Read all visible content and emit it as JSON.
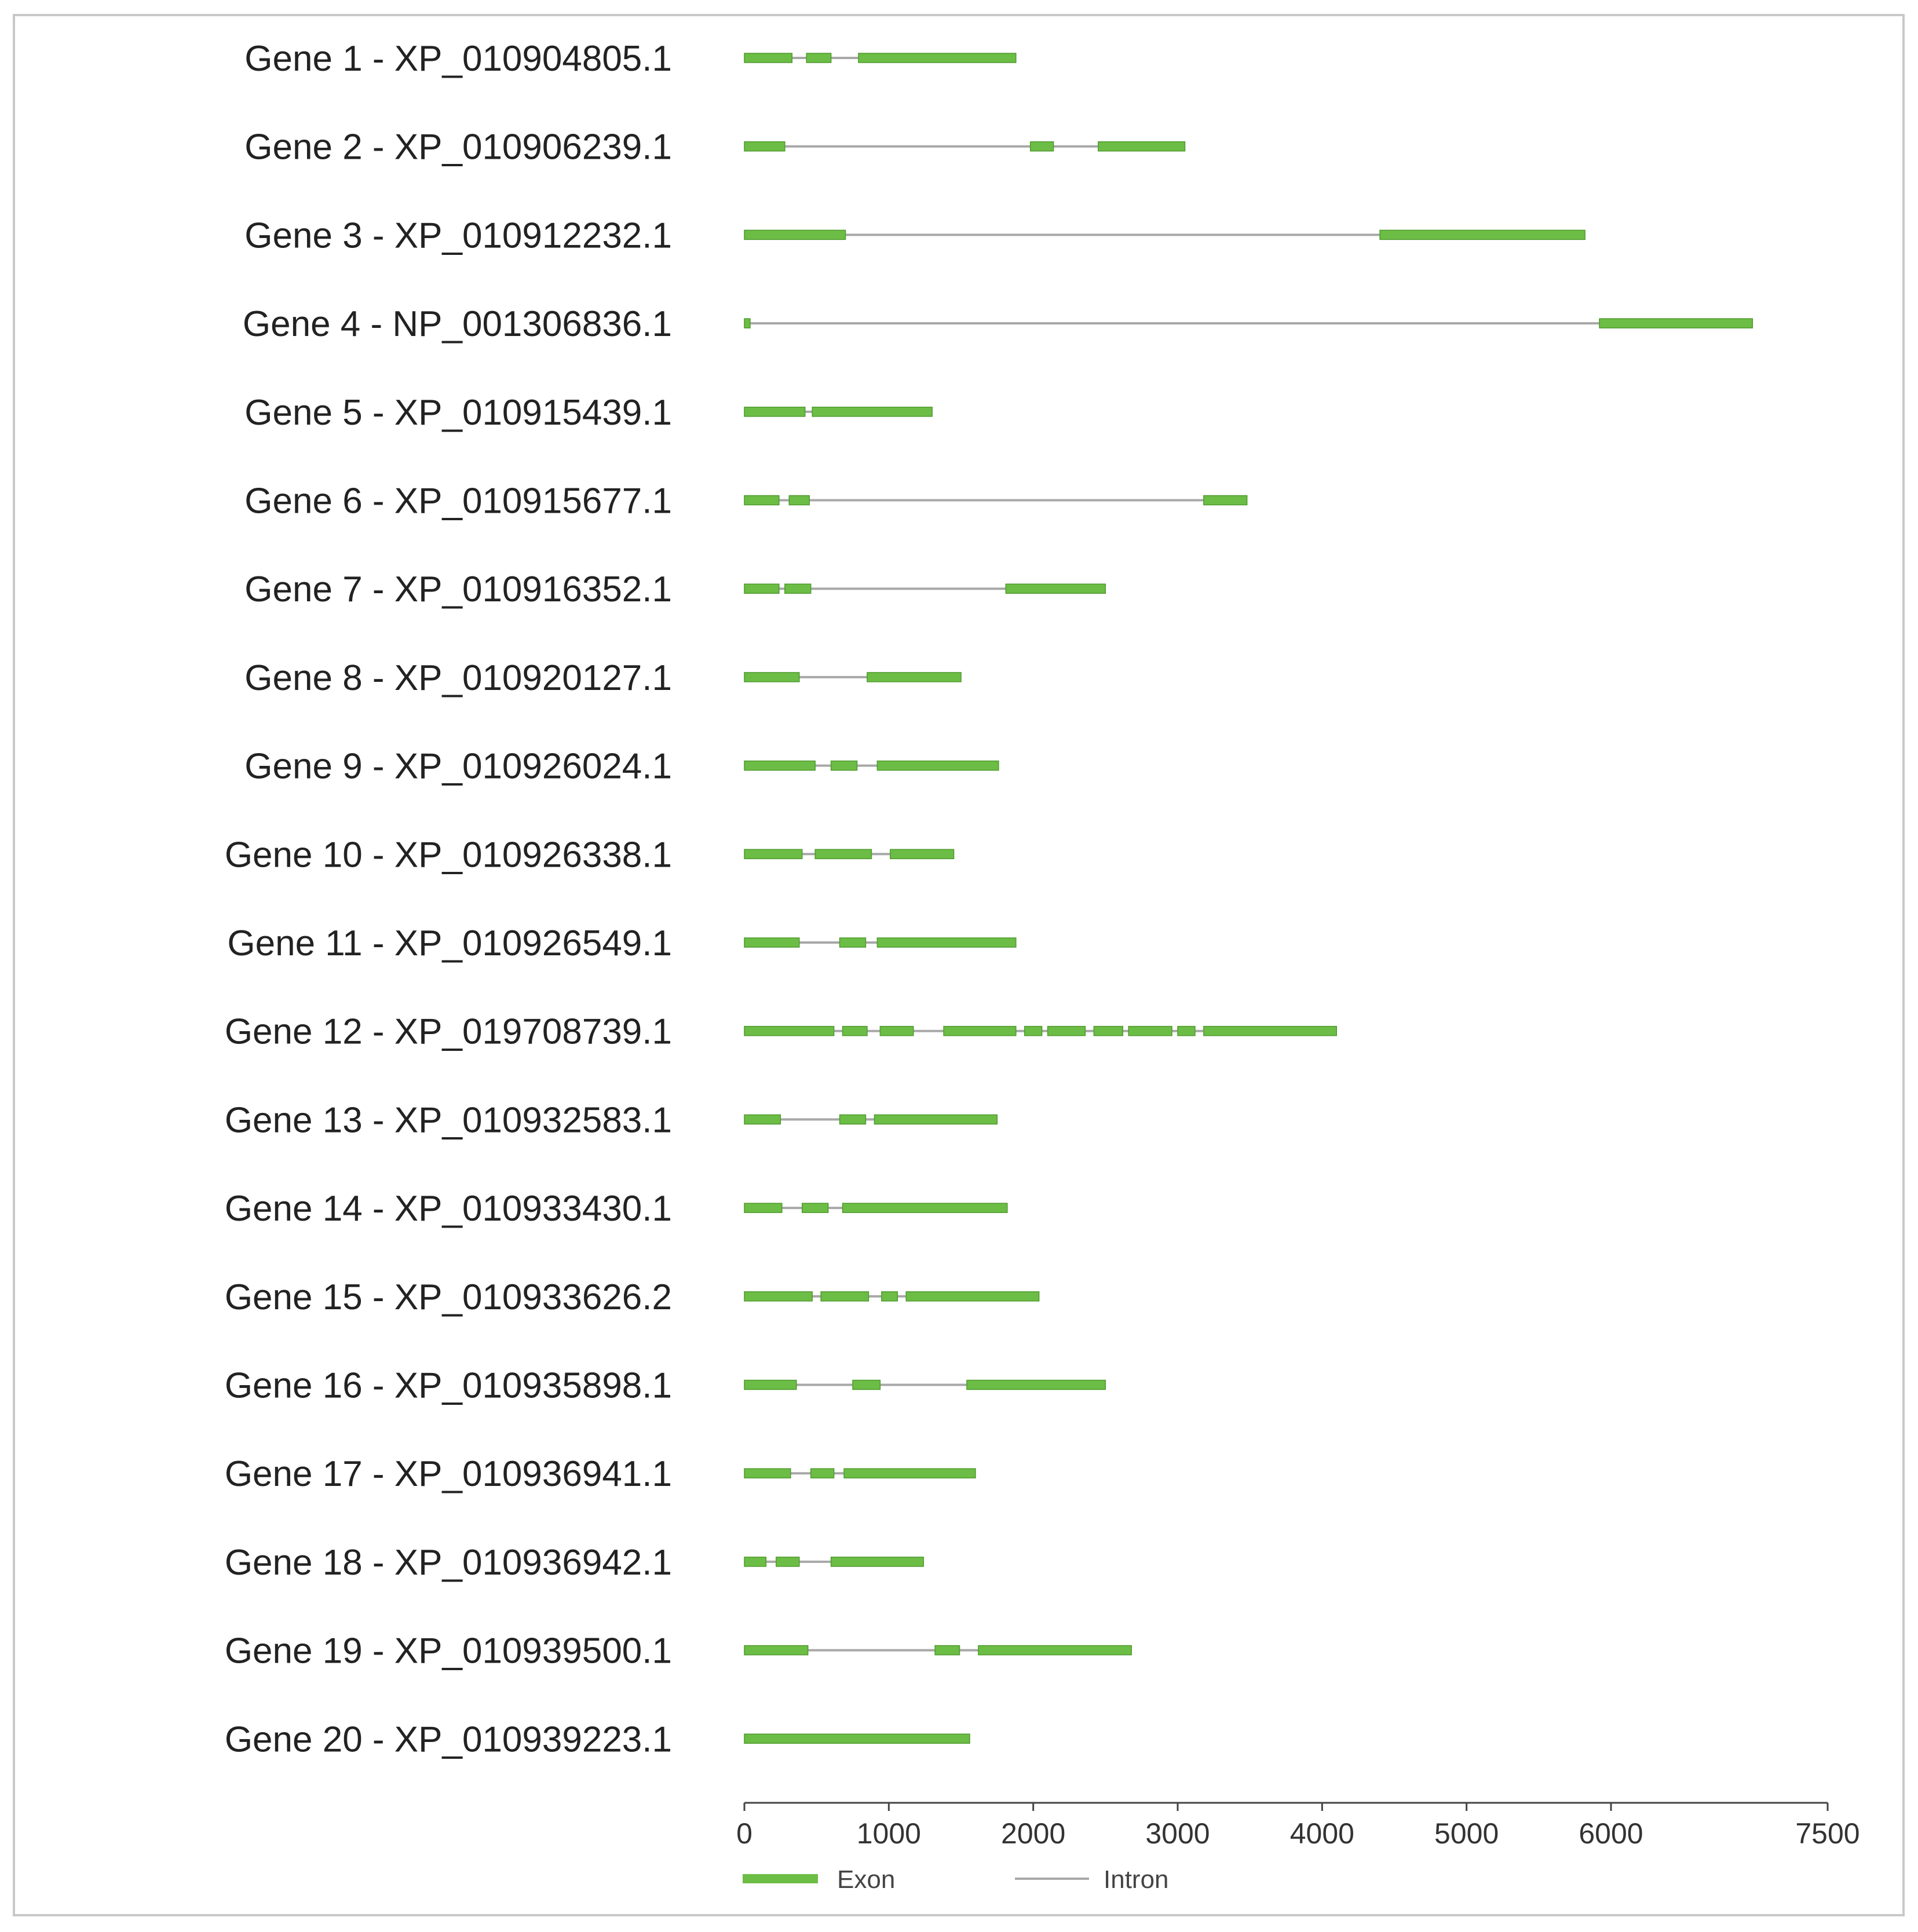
{
  "colors": {
    "exon": "#6cbd45",
    "intron": "#a8a8a8",
    "axis": "#444444",
    "frame": "#c8c8c8"
  },
  "legend": {
    "exon_label": "Exon",
    "intron_label": "Intron"
  },
  "chart_data": {
    "type": "gene_structure",
    "x_ticks": [
      0,
      1000,
      2000,
      3000,
      4000,
      5000,
      6000,
      7500
    ],
    "xlim": [
      0,
      7500
    ],
    "genes": [
      {
        "label": "Gene 1 - XP_010904805.1",
        "length": 1880,
        "exons": [
          [
            0,
            330
          ],
          [
            430,
            600
          ],
          [
            790,
            1880
          ]
        ]
      },
      {
        "label": "Gene 2 - XP_010906239.1",
        "length": 3050,
        "exons": [
          [
            0,
            280
          ],
          [
            1980,
            2140
          ],
          [
            2450,
            3050
          ]
        ]
      },
      {
        "label": "Gene 3 - XP_010912232.1",
        "length": 5820,
        "exons": [
          [
            0,
            700
          ],
          [
            4400,
            5820
          ]
        ]
      },
      {
        "label": "Gene 4 - NP_001306836.1",
        "length": 6980,
        "exons": [
          [
            0,
            40
          ],
          [
            5920,
            6980
          ]
        ]
      },
      {
        "label": "Gene 5 - XP_010915439.1",
        "length": 1300,
        "exons": [
          [
            0,
            420
          ],
          [
            470,
            1300
          ]
        ]
      },
      {
        "label": "Gene 6 - XP_010915677.1",
        "length": 3480,
        "exons": [
          [
            0,
            240
          ],
          [
            310,
            450
          ],
          [
            3180,
            3480
          ]
        ]
      },
      {
        "label": "Gene 7 - XP_010916352.1",
        "length": 2500,
        "exons": [
          [
            0,
            240
          ],
          [
            280,
            460
          ],
          [
            1810,
            2500
          ]
        ]
      },
      {
        "label": "Gene 8 - XP_010920127.1",
        "length": 1500,
        "exons": [
          [
            0,
            380
          ],
          [
            850,
            1500
          ]
        ]
      },
      {
        "label": "Gene 9 - XP_010926024.1",
        "length": 1760,
        "exons": [
          [
            0,
            490
          ],
          [
            600,
            780
          ],
          [
            920,
            1760
          ]
        ]
      },
      {
        "label": "Gene 10 - XP_010926338.1",
        "length": 1450,
        "exons": [
          [
            0,
            400
          ],
          [
            490,
            880
          ],
          [
            1010,
            1450
          ]
        ]
      },
      {
        "label": "Gene 11 - XP_010926549.1",
        "length": 1880,
        "exons": [
          [
            0,
            380
          ],
          [
            660,
            840
          ],
          [
            920,
            1880
          ]
        ]
      },
      {
        "label": "Gene 12 - XP_019708739.1",
        "length": 4100,
        "exons": [
          [
            0,
            620
          ],
          [
            680,
            850
          ],
          [
            940,
            1170
          ],
          [
            1380,
            1880
          ],
          [
            1940,
            2060
          ],
          [
            2100,
            2360
          ],
          [
            2420,
            2620
          ],
          [
            2660,
            2960
          ],
          [
            3000,
            3120
          ],
          [
            3180,
            4100
          ]
        ]
      },
      {
        "label": "Gene 13 - XP_010932583.1",
        "length": 1750,
        "exons": [
          [
            0,
            250
          ],
          [
            660,
            840
          ],
          [
            900,
            1750
          ]
        ]
      },
      {
        "label": "Gene 14 - XP_010933430.1",
        "length": 1820,
        "exons": [
          [
            0,
            260
          ],
          [
            400,
            580
          ],
          [
            680,
            1820
          ]
        ]
      },
      {
        "label": "Gene 15 - XP_010933626.2",
        "length": 2040,
        "exons": [
          [
            0,
            470
          ],
          [
            530,
            860
          ],
          [
            950,
            1060
          ],
          [
            1120,
            2040
          ]
        ]
      },
      {
        "label": "Gene 16 - XP_010935898.1",
        "length": 2500,
        "exons": [
          [
            0,
            360
          ],
          [
            750,
            940
          ],
          [
            1540,
            2500
          ]
        ]
      },
      {
        "label": "Gene 17 - XP_010936941.1",
        "length": 1600,
        "exons": [
          [
            0,
            320
          ],
          [
            460,
            620
          ],
          [
            690,
            1600
          ]
        ]
      },
      {
        "label": "Gene 18 - XP_010936942.1",
        "length": 1240,
        "exons": [
          [
            0,
            150
          ],
          [
            220,
            380
          ],
          [
            600,
            1240
          ]
        ]
      },
      {
        "label": "Gene 19 - XP_010939500.1",
        "length": 2680,
        "exons": [
          [
            0,
            440
          ],
          [
            1320,
            1490
          ],
          [
            1620,
            2680
          ]
        ]
      },
      {
        "label": "Gene 20 - XP_010939223.1",
        "length": 1560,
        "exons": [
          [
            0,
            1560
          ]
        ]
      }
    ]
  }
}
